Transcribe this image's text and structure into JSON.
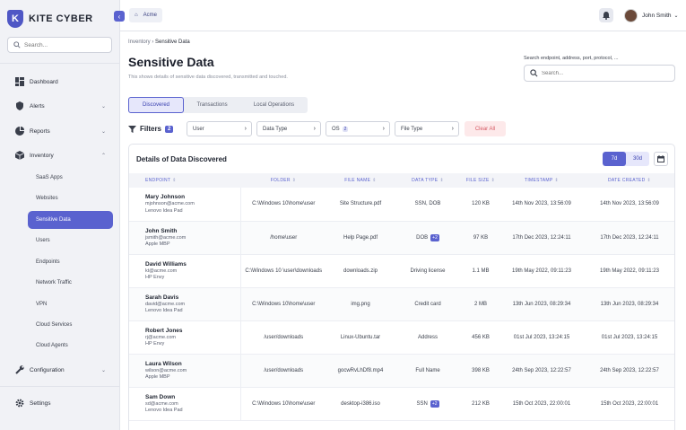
{
  "brand": {
    "logo_letter": "K",
    "name": "KITE CYBER"
  },
  "sidebar": {
    "search_placeholder": "Search...",
    "items": [
      {
        "label": "Dashboard",
        "icon": "dashboard-icon"
      },
      {
        "label": "Alerts",
        "icon": "shield-icon"
      },
      {
        "label": "Reports",
        "icon": "pie-chart-icon"
      },
      {
        "label": "Inventory",
        "icon": "box-icon"
      }
    ],
    "inventory_sub": [
      "SaaS Apps",
      "Websites",
      "Sensitive Data",
      "Users",
      "Endpoints",
      "Network Traffic",
      "VPN",
      "Cloud Services",
      "Cloud Agents"
    ],
    "configuration": "Configuration",
    "settings": "Settings"
  },
  "topbar": {
    "org": "Acme",
    "user_name": "John Smith"
  },
  "breadcrumb": {
    "root": "Inventory",
    "current": "Sensitive Data"
  },
  "page": {
    "title": "Sensitive Data",
    "subtitle": "This shows details of sensitive data discovered, transmitted and touched.",
    "search_label": "Search endpoint, address, port, protocol, ...",
    "search_placeholder": "Search..."
  },
  "tabs": [
    "Discovered",
    "Transactions",
    "Local Operations"
  ],
  "filters": {
    "label": "Filters",
    "count": "2",
    "user": "User",
    "data_type": "Data Type",
    "os": "OS",
    "os_count": "2",
    "file_type": "File Type",
    "clear": "Clear All"
  },
  "card": {
    "title": "Details of Data Discovered",
    "range_7d": "7d",
    "range_30d": "30d"
  },
  "table": {
    "headers": [
      "ENDPOINT",
      "FOLDER",
      "FILE NAME",
      "DATA TYPE",
      "FILE SIZE",
      "TIMESTAMP",
      "DATE CREATED"
    ],
    "rows": [
      {
        "name": "Mary Johnson",
        "email": "mjohnson@acme.com",
        "device": "Lenovo Idea Pad",
        "folder": "C:\\Windows 10\\home\\user",
        "file": "Site Structure.pdf",
        "type": "SSN, DOB",
        "extra": "",
        "size": "120 KB",
        "ts": "14th Nov 2023, 13:56:09",
        "created": "14th Nov 2023, 13:56:09"
      },
      {
        "name": "John Smith",
        "email": "jsmith@acme.com",
        "device": "Apple MBP",
        "folder": "/home\\user",
        "file": "Help Page.pdf",
        "type": "DOB",
        "extra": "+2",
        "size": "97 KB",
        "ts": "17th Dec 2023, 12:24:11",
        "created": "17th Dec 2023, 12:24:11"
      },
      {
        "name": "David Williams",
        "email": "kt@acme.com",
        "device": "HP Envy",
        "folder": "C:\\Windows 10 \\user\\downloads",
        "file": "downloads.zip",
        "type": "Driving license",
        "extra": "",
        "size": "1.1 MB",
        "ts": "19th May 2022, 09:11:23",
        "created": "19th May 2022, 09:11:23"
      },
      {
        "name": "Sarah Davis",
        "email": "david@acme.com",
        "device": "Lenovo Idea Pad",
        "folder": "C:\\Windows 10\\home\\user",
        "file": "img.png",
        "type": "Credit card",
        "extra": "",
        "size": "2 MB",
        "ts": "13th Jun 2023, 08:29:34",
        "created": "13th Jun 2023, 08:29:34"
      },
      {
        "name": "Robert Jones",
        "email": "rj@acme.com",
        "device": "HP Envy",
        "folder": "/user/downloads",
        "file": "Linux-Ubuntu.tar",
        "type": "Address",
        "extra": "",
        "size": "456 KB",
        "ts": "01st Jul 2023, 13:24:15",
        "created": "01st Jul 2023, 13:24:15"
      },
      {
        "name": "Laura Wilson",
        "email": "wilson@acme.com",
        "device": "Apple MBP",
        "folder": "/user/downloads",
        "file": "gocwRvLhDf8.mp4",
        "type": "Full Name",
        "extra": "",
        "size": "398 KB",
        "ts": "24th Sep 2023, 12:22:57",
        "created": "24th Sep 2023, 12:22:57"
      },
      {
        "name": "Sam Down",
        "email": "sd@acme.com",
        "device": "Lenovo Idea Pad",
        "folder": "C:\\Windows 10\\home\\user",
        "file": "desktop-i386.iso",
        "type": "SSN",
        "extra": "+2",
        "size": "212 KB",
        "ts": "15th Oct 2023, 22:00:01",
        "created": "15th Oct 2023, 22:00:01"
      }
    ]
  }
}
